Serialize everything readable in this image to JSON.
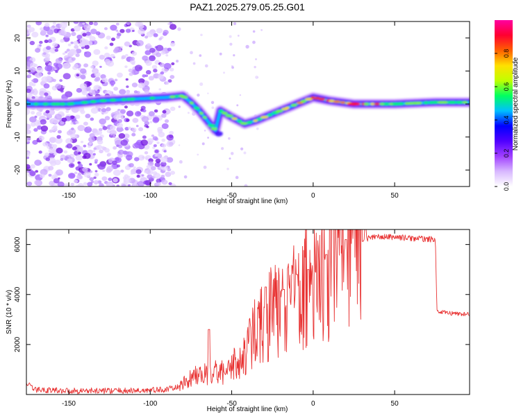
{
  "title": "PAZ1.2025.279.05.25.G01",
  "chart_data": [
    {
      "type": "heatmap",
      "xlabel": "Height of straight line (km)",
      "ylabel": "Frequency (Hz)",
      "xlim": [
        -176,
        96
      ],
      "ylim": [
        -25,
        25
      ],
      "x_ticks": [
        -150,
        -100,
        -50,
        0,
        50
      ],
      "y_ticks": [
        -20,
        -10,
        0,
        10,
        20
      ],
      "colorbar": {
        "label": "Normalized spectral amplitude",
        "range": [
          0,
          1
        ],
        "ticks": [
          0.0,
          0.2,
          0.4,
          0.6,
          0.8
        ],
        "colors": [
          "#ffffff",
          "#d8b8ff",
          "#a040ff",
          "#5000ff",
          "#0000ff",
          "#00c0ff",
          "#00ff60",
          "#c0ff00",
          "#ffe000",
          "#ff6000",
          "#ff0030",
          "#ff00a0"
        ]
      },
      "ridge_track": [
        {
          "x": -175,
          "f": 0.0
        },
        {
          "x": -150,
          "f": 0.0
        },
        {
          "x": -130,
          "f": 1.0
        },
        {
          "x": -110,
          "f": 1.5
        },
        {
          "x": -90,
          "f": 2.0
        },
        {
          "x": -80,
          "f": 2.5
        },
        {
          "x": -75,
          "f": 0.5
        },
        {
          "x": -70,
          "f": -2.0
        },
        {
          "x": -65,
          "f": -5.0
        },
        {
          "x": -60,
          "f": -8.0
        },
        {
          "x": -57,
          "f": -2.0
        },
        {
          "x": -50,
          "f": -4.0
        },
        {
          "x": -42,
          "f": -6.0
        },
        {
          "x": -35,
          "f": -5.0
        },
        {
          "x": -25,
          "f": -3.0
        },
        {
          "x": -15,
          "f": -1.0
        },
        {
          "x": -5,
          "f": 1.0
        },
        {
          "x": 0,
          "f": 2.0
        },
        {
          "x": 10,
          "f": 1.0
        },
        {
          "x": 25,
          "f": 0.0
        },
        {
          "x": 50,
          "f": 0.0
        },
        {
          "x": 75,
          "f": 0.5
        },
        {
          "x": 96,
          "f": 0.5
        }
      ]
    },
    {
      "type": "line",
      "xlabel": "Height of straight line (km)",
      "ylabel": "SNR (10 * v/v)",
      "xlim": [
        -176,
        96
      ],
      "ylim": [
        0,
        6600
      ],
      "x_ticks": [
        -150,
        -100,
        -50,
        0,
        50
      ],
      "y_ticks": [
        2000,
        4000,
        6000
      ],
      "color": "#e83232",
      "envelope": [
        {
          "x": -176,
          "y": 500
        },
        {
          "x": -172,
          "y": 200
        },
        {
          "x": -150,
          "y": 150
        },
        {
          "x": -110,
          "y": 150
        },
        {
          "x": -90,
          "y": 200
        },
        {
          "x": -82,
          "y": 300
        },
        {
          "x": -75,
          "y": 600
        },
        {
          "x": -65,
          "y": 800
        },
        {
          "x": -55,
          "y": 800
        },
        {
          "x": -45,
          "y": 1200
        },
        {
          "x": -35,
          "y": 2300
        },
        {
          "x": -25,
          "y": 3000
        },
        {
          "x": -15,
          "y": 3400
        },
        {
          "x": -5,
          "y": 3800
        },
        {
          "x": 5,
          "y": 4300
        },
        {
          "x": 15,
          "y": 5100
        },
        {
          "x": 25,
          "y": 5900
        },
        {
          "x": 35,
          "y": 6300
        },
        {
          "x": 50,
          "y": 6300
        },
        {
          "x": 60,
          "y": 6250
        },
        {
          "x": 75,
          "y": 6200
        },
        {
          "x": 76,
          "y": 3300
        },
        {
          "x": 85,
          "y": 3250
        },
        {
          "x": 96,
          "y": 3200
        }
      ],
      "spikes": [
        {
          "x": -64,
          "y": 2600
        },
        {
          "x": -29,
          "y": 4300
        },
        {
          "x": -18,
          "y": 4200
        },
        {
          "x": -10,
          "y": 4800
        },
        {
          "x": -3,
          "y": 5000
        },
        {
          "x": 8,
          "y": 5600
        },
        {
          "x": 20,
          "y": 6200
        },
        {
          "x": 32,
          "y": 6600
        }
      ]
    }
  ]
}
